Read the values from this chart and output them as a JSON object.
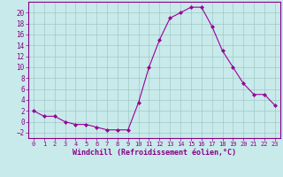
{
  "x": [
    0,
    1,
    2,
    3,
    4,
    5,
    6,
    7,
    8,
    9,
    10,
    11,
    12,
    13,
    14,
    15,
    16,
    17,
    18,
    19,
    20,
    21,
    22,
    23
  ],
  "y": [
    2,
    1,
    1,
    0,
    -0.5,
    -0.5,
    -1,
    -1.5,
    -1.5,
    -1.5,
    3.5,
    10,
    15,
    19,
    20,
    21,
    21,
    17.5,
    13,
    10,
    7,
    5,
    5,
    3
  ],
  "line_color": "#990099",
  "marker": "D",
  "marker_size": 2.0,
  "bg_color": "#c8eaea",
  "grid_color": "#a0c8c8",
  "xlabel": "Windchill (Refroidissement éolien,°C)",
  "xlabel_color": "#880088",
  "tick_color": "#880088",
  "ylim": [
    -3,
    22
  ],
  "yticks": [
    -2,
    0,
    2,
    4,
    6,
    8,
    10,
    12,
    14,
    16,
    18,
    20
  ],
  "xticks": [
    0,
    1,
    2,
    3,
    4,
    5,
    6,
    7,
    8,
    9,
    10,
    11,
    12,
    13,
    14,
    15,
    16,
    17,
    18,
    19,
    20,
    21,
    22,
    23
  ],
  "xlim": [
    -0.5,
    23.5
  ]
}
